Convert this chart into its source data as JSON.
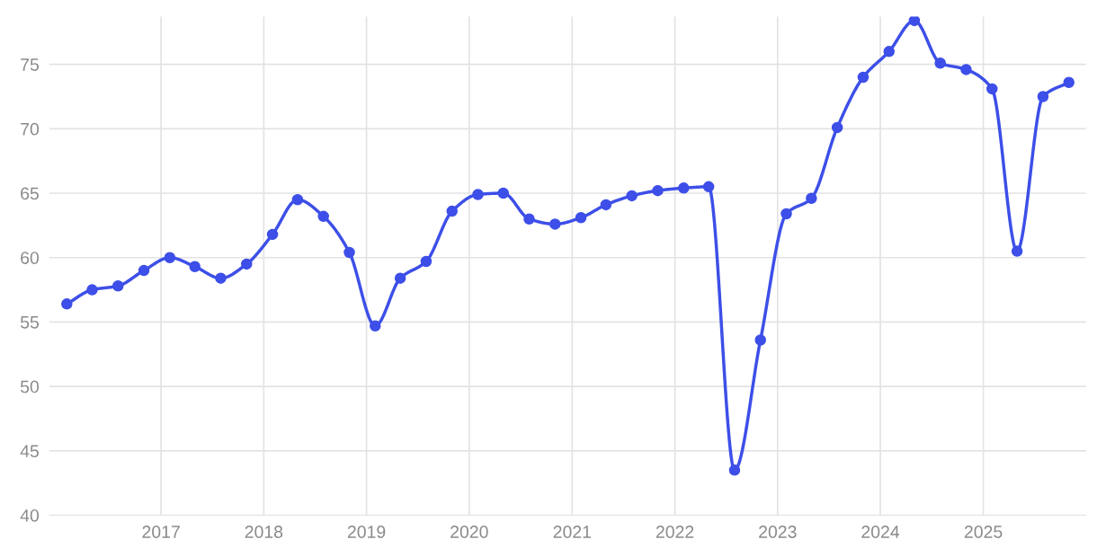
{
  "chart_data": {
    "type": "line",
    "x": [
      "2016-02",
      "2016-05",
      "2016-08",
      "2016-11",
      "2017-02",
      "2017-05",
      "2017-08",
      "2017-11",
      "2018-02",
      "2018-05",
      "2018-08",
      "2018-11",
      "2019-02",
      "2019-05",
      "2019-08",
      "2019-11",
      "2020-02",
      "2020-05",
      "2020-08",
      "2020-11",
      "2021-02",
      "2021-05",
      "2021-08",
      "2021-11",
      "2022-02",
      "2022-05",
      "2022-08",
      "2022-11",
      "2023-02",
      "2023-05",
      "2023-08",
      "2023-11",
      "2024-02",
      "2024-05",
      "2024-08",
      "2024-11",
      "2025-02",
      "2025-05",
      "2025-08",
      "2025-11"
    ],
    "series": [
      {
        "color": "#3d4fe8",
        "values": [
          56.4,
          57.5,
          57.8,
          59.0,
          60.0,
          59.3,
          58.4,
          59.5,
          61.8,
          64.5,
          63.2,
          60.4,
          54.7,
          58.4,
          59.7,
          63.6,
          64.9,
          65.0,
          63.0,
          62.6,
          63.1,
          64.1,
          64.8,
          65.2,
          65.4,
          65.5,
          43.5,
          53.6,
          63.4,
          64.6,
          70.1,
          74.0,
          76.0,
          78.4,
          75.1,
          74.6,
          73.1,
          60.5,
          72.5,
          73.6
        ]
      }
    ],
    "xlim": [
      "2015-12",
      "2026-01"
    ],
    "ylim": [
      40,
      78.7
    ],
    "xticks": [
      {
        "value": "2017",
        "label": "2017"
      },
      {
        "value": "2018",
        "label": "2018"
      },
      {
        "value": "2019",
        "label": "2019"
      },
      {
        "value": "2020",
        "label": "2020"
      },
      {
        "value": "2021",
        "label": "2021"
      },
      {
        "value": "2022",
        "label": "2022"
      },
      {
        "value": "2023",
        "label": "2023"
      },
      {
        "value": "2024",
        "label": "2024"
      },
      {
        "value": "2025",
        "label": "2025"
      }
    ],
    "yticks": [
      40,
      45,
      50,
      55,
      60,
      65,
      70,
      75
    ],
    "grid": true,
    "marker": "circle",
    "line_style": "solid",
    "legend": false
  }
}
